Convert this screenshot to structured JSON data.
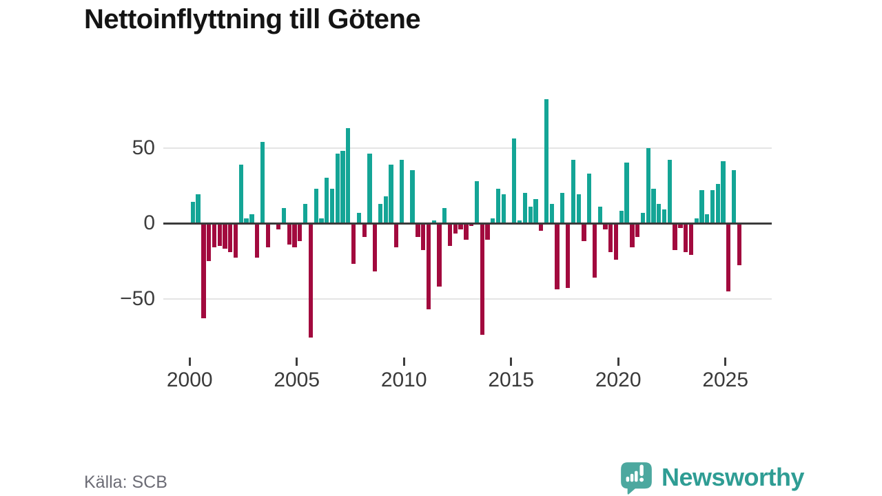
{
  "title": "Nettoinflyttning till Götene",
  "source": "Källa: SCB",
  "branding": {
    "name": "Newsworthy",
    "icon": "newsworthy-speech-bubble-chart-icon"
  },
  "colors": {
    "positive": "#14a596",
    "negative": "#a20a3e",
    "grid": "#e4e4e4",
    "axis": "#3a3a3a",
    "brand_teal": "#4ca89f",
    "wordmark_teal": "#2f9d94"
  },
  "chart_data": {
    "type": "bar",
    "title": "Nettoinflyttning till Götene",
    "frequency": "quarterly",
    "start_year": 2000,
    "start_quarter": 1,
    "end_year": 2025,
    "end_quarter": 3,
    "values": [
      14,
      19,
      -63,
      -25,
      -16,
      -15,
      -17,
      -19,
      -23,
      39,
      3,
      6,
      -23,
      54,
      -16,
      0,
      -4,
      10,
      -14,
      -16,
      -12,
      13,
      -76,
      23,
      3,
      30,
      23,
      46,
      48,
      63,
      -27,
      7,
      -9,
      46,
      -32,
      13,
      18,
      39,
      -16,
      42,
      0,
      35,
      -9,
      -18,
      -57,
      2,
      -42,
      10,
      -15,
      -7,
      -4,
      -11,
      -2,
      28,
      -74,
      -11,
      3,
      23,
      19,
      0,
      56,
      2,
      20,
      11,
      16,
      -5,
      82,
      13,
      -44,
      20,
      -43,
      42,
      19,
      -12,
      33,
      -36,
      11,
      -4,
      -19,
      -24,
      8,
      40,
      -16,
      -9,
      7,
      50,
      23,
      13,
      9,
      42,
      -18,
      -3,
      -19,
      -21,
      3,
      22,
      6,
      22,
      26,
      41,
      -45,
      35,
      -28
    ],
    "y_ticks": [
      {
        "label": "50",
        "value": 50
      },
      {
        "label": "0",
        "value": 0
      },
      {
        "label": "−50",
        "value": -50
      }
    ],
    "x_ticks": [
      {
        "label": "2000",
        "year": 2000
      },
      {
        "label": "2005",
        "year": 2005
      },
      {
        "label": "2010",
        "year": 2010
      },
      {
        "label": "2015",
        "year": 2015
      },
      {
        "label": "2020",
        "year": 2020
      },
      {
        "label": "2025",
        "year": 2025
      }
    ],
    "ylim": [
      -85,
      90
    ],
    "grid": "horizontal",
    "legend": "none",
    "positive_color": "#14a596",
    "negative_color": "#a20a3e"
  }
}
